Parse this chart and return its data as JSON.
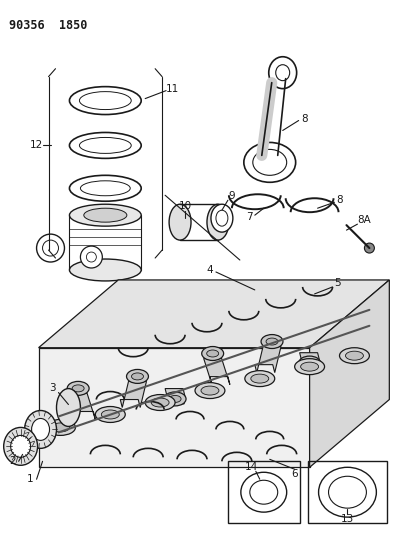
{
  "title": "90356  1850",
  "bg_color": "#ffffff",
  "lc": "#1a1a1a",
  "figsize": [
    3.96,
    5.33
  ],
  "dpi": 100
}
